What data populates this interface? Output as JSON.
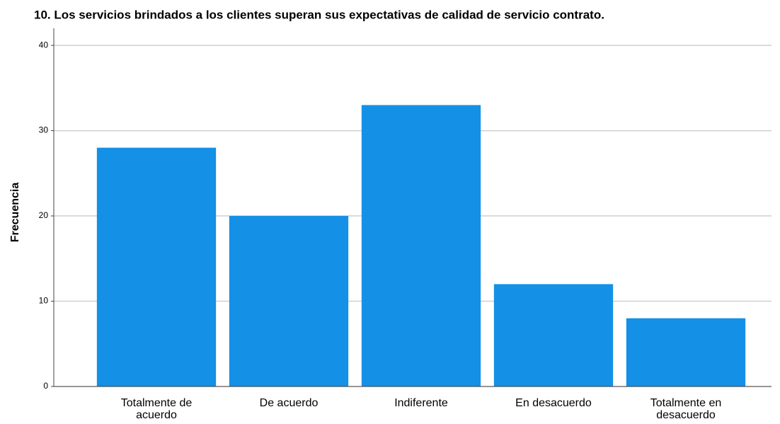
{
  "chart_data": {
    "type": "bar",
    "title": "10. Los servicios brindados a los clientes superan sus expectativas de calidad de servicio contrato.",
    "ylabel": "Frecuencia",
    "categories": [
      "Totalmente de acuerdo",
      "De acuerdo",
      "Indiferente",
      "En desacuerdo",
      "Totalmente en desacuerdo"
    ],
    "values": [
      28,
      20,
      33,
      12,
      8
    ],
    "color": "#1490e6",
    "ylim": [
      0,
      42
    ],
    "yticks": [
      0,
      10,
      20,
      30,
      40
    ],
    "grid": true
  }
}
